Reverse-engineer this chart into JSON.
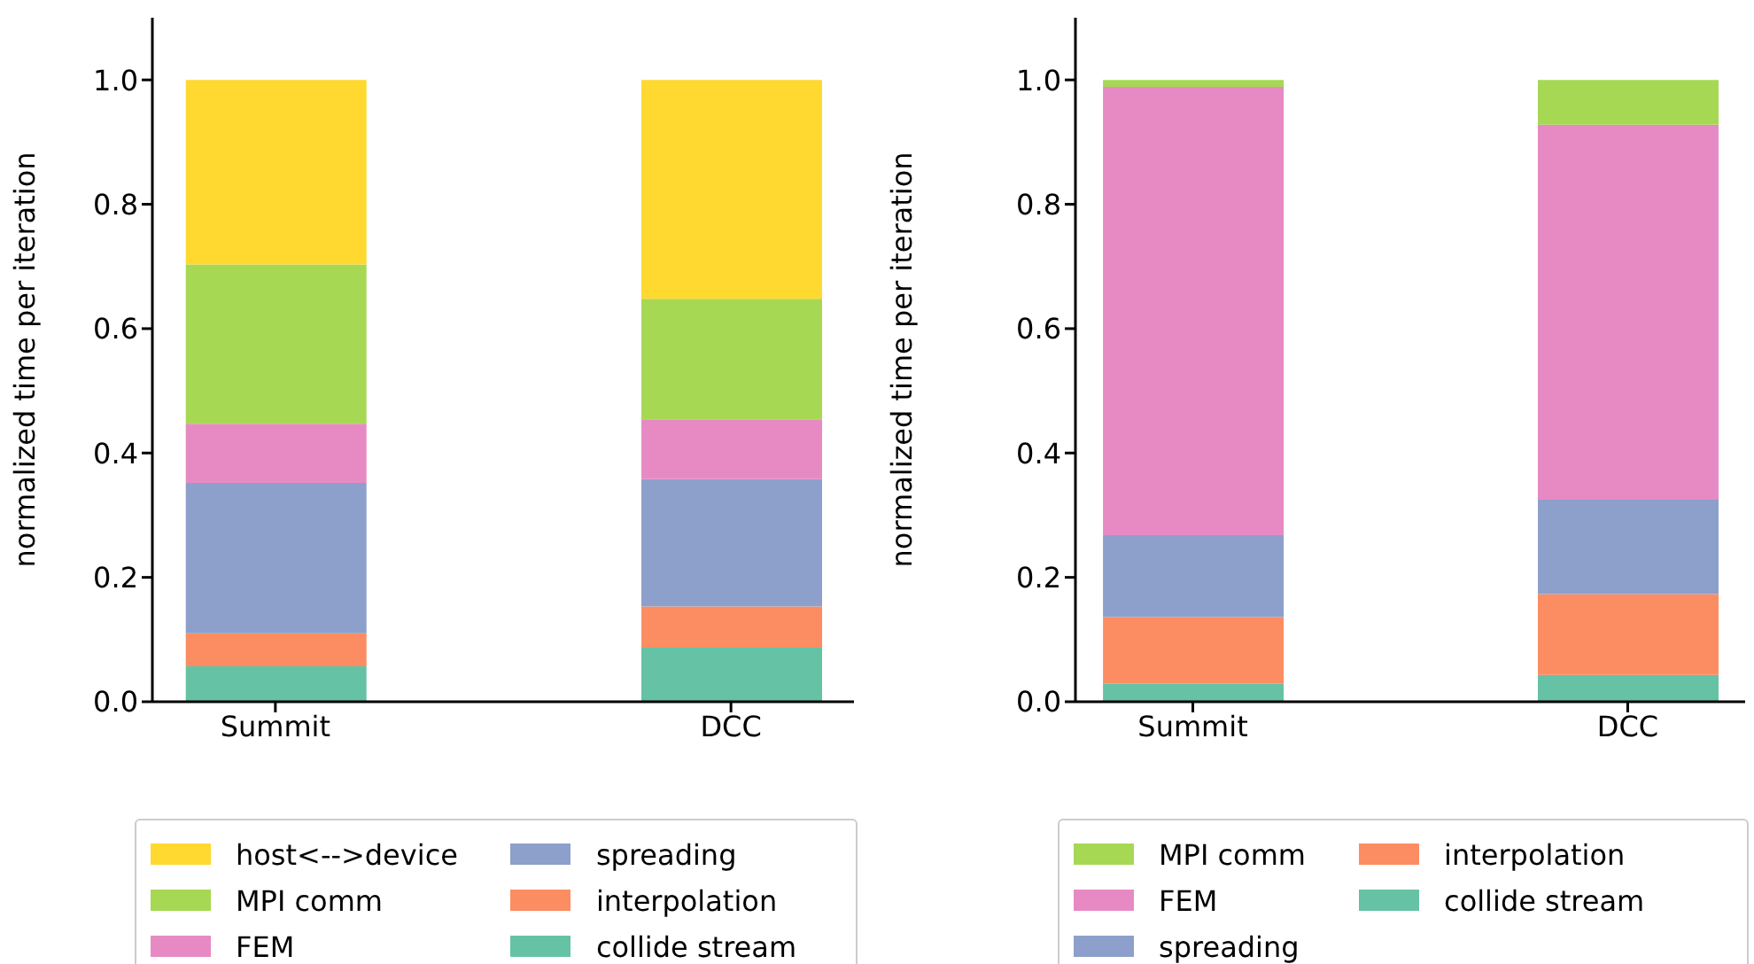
{
  "chart_data": [
    {
      "type": "bar",
      "stacked": true,
      "categories": [
        "Summit",
        "DCC"
      ],
      "ylabel": "normalized time per iteration",
      "ylim": [
        0,
        1.1
      ],
      "yticks": [
        {
          "value": 0,
          "label": "0.0"
        },
        {
          "value": 0.2,
          "label": "0.2"
        },
        {
          "value": 0.4,
          "label": "0.4"
        },
        {
          "value": 0.6,
          "label": "0.6"
        },
        {
          "value": 0.8,
          "label": "0.8"
        },
        {
          "value": 1,
          "label": "1.0"
        }
      ],
      "grid": false,
      "legend": "bottom",
      "series": [
        {
          "name": "collide stream",
          "color": "#66c2a5",
          "values": [
            0.057,
            0.087
          ]
        },
        {
          "name": "interpolation",
          "color": "#fc8d62",
          "values": [
            0.053,
            0.066
          ]
        },
        {
          "name": "spreading",
          "color": "#8da0cb",
          "values": [
            0.242,
            0.205
          ]
        },
        {
          "name": "FEM",
          "color": "#e78ac3",
          "values": [
            0.095,
            0.096
          ]
        },
        {
          "name": "MPI comm",
          "color": "#a6d854",
          "values": [
            0.256,
            0.194
          ]
        },
        {
          "name": "host<-->device",
          "color": "#ffd92f",
          "values": [
            0.297,
            0.352
          ]
        }
      ]
    },
    {
      "type": "bar",
      "stacked": true,
      "categories": [
        "Summit",
        "DCC"
      ],
      "ylabel": "normalized time per iteration",
      "ylim": [
        0,
        1.1
      ],
      "yticks": [
        {
          "value": 0,
          "label": "0.0"
        },
        {
          "value": 0.2,
          "label": "0.2"
        },
        {
          "value": 0.4,
          "label": "0.4"
        },
        {
          "value": 0.6,
          "label": "0.6"
        },
        {
          "value": 0.8,
          "label": "0.8"
        },
        {
          "value": 1,
          "label": "1.0"
        }
      ],
      "grid": false,
      "legend": "bottom",
      "series": [
        {
          "name": "collide stream",
          "color": "#66c2a5",
          "values": [
            0.029,
            0.043
          ]
        },
        {
          "name": "interpolation",
          "color": "#fc8d62",
          "values": [
            0.107,
            0.13
          ]
        },
        {
          "name": "spreading",
          "color": "#8da0cb",
          "values": [
            0.132,
            0.152
          ]
        },
        {
          "name": "FEM",
          "color": "#e78ac3",
          "values": [
            0.721,
            0.603
          ]
        },
        {
          "name": "MPI comm",
          "color": "#a6d854",
          "values": [
            0.011,
            0.072
          ]
        }
      ]
    }
  ]
}
